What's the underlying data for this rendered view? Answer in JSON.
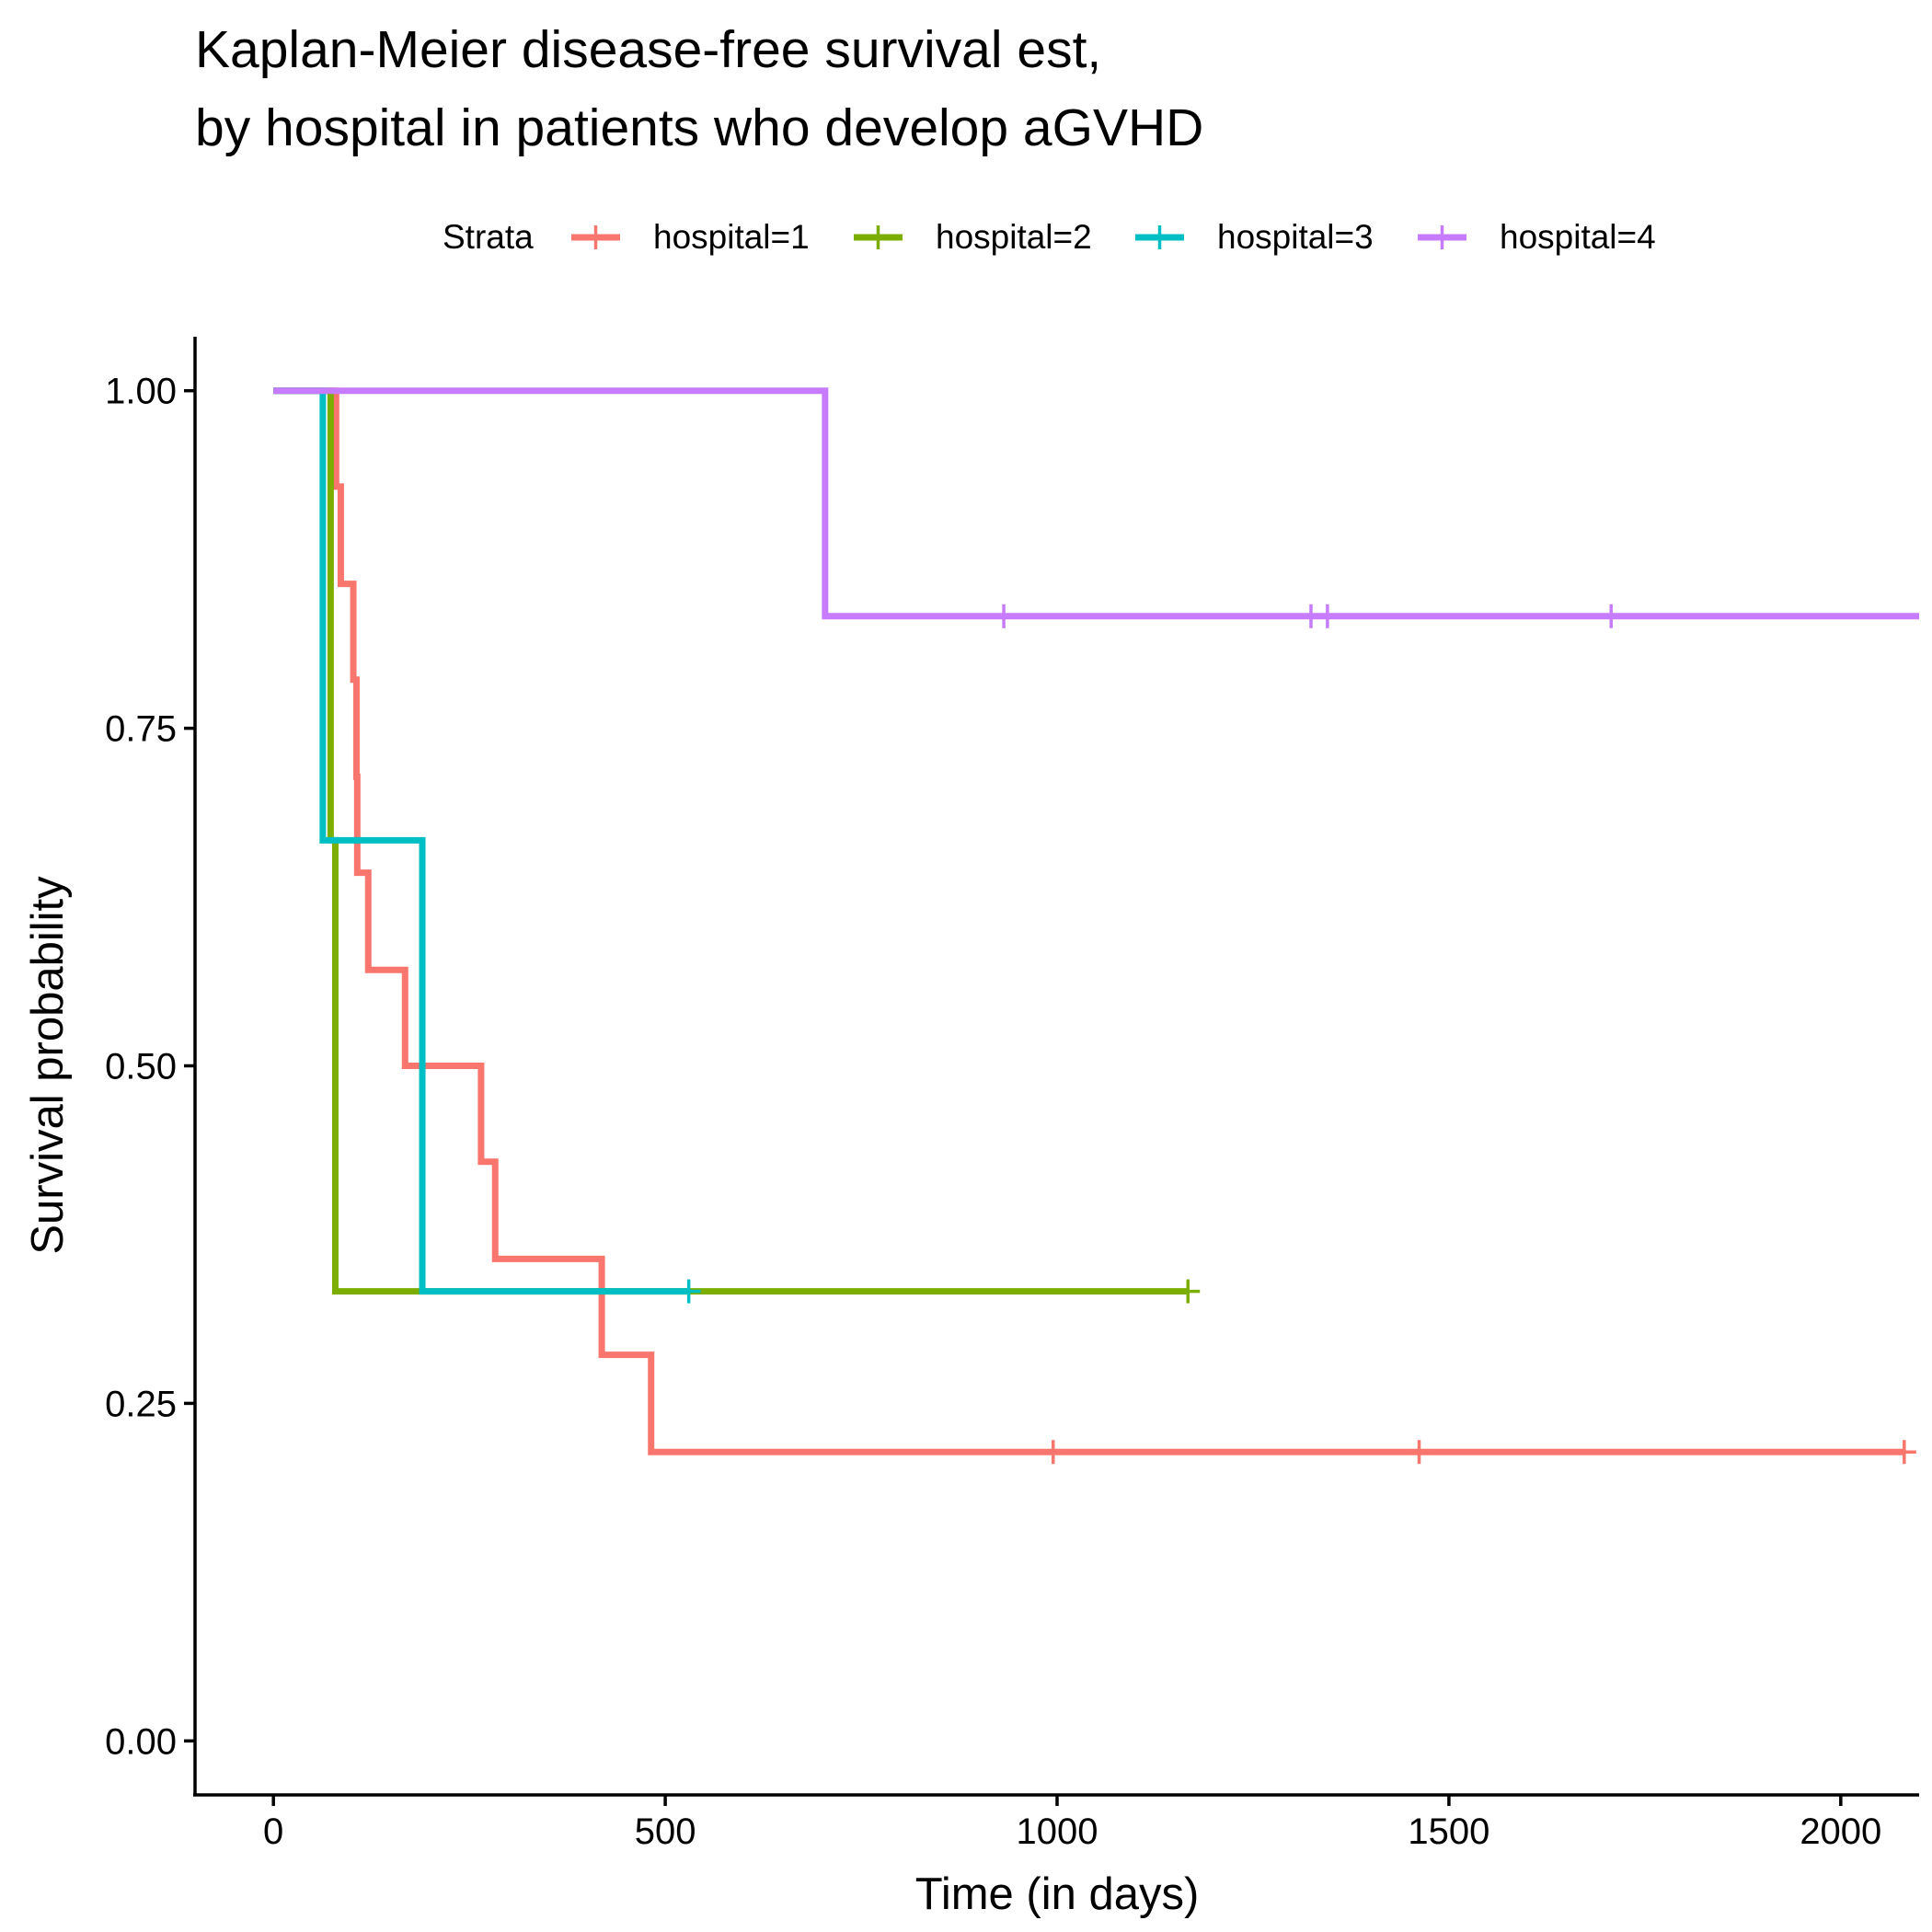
{
  "chart_data": {
    "type": "line",
    "subtype": "kaplan-meier step curve",
    "title_line1": "Kaplan-Meier disease-free survival est,",
    "title_line2": "by hospital in patients who develop aGVHD",
    "xlabel": "Time (in days)",
    "ylabel": "Survival probability",
    "xlim": [
      -100,
      2100
    ],
    "ylim": [
      -0.04,
      1.04
    ],
    "x_ticks": [
      0,
      500,
      1000,
      1500,
      2000
    ],
    "x_tick_labels": [
      "0",
      "500",
      "1000",
      "1500",
      "2000"
    ],
    "y_ticks": [
      0,
      0.25,
      0.5,
      0.75,
      1
    ],
    "y_tick_labels": [
      "0.00",
      "0.25",
      "0.50",
      "0.75",
      "1.00"
    ],
    "grid": false,
    "legend": {
      "title": "Strata",
      "position": "top"
    },
    "series": [
      {
        "name": "hospital=1",
        "color": "#F8766D",
        "steps": [
          [
            0,
            1.0
          ],
          [
            80,
            0.929
          ],
          [
            86,
            0.857
          ],
          [
            102,
            0.786
          ],
          [
            106,
            0.714
          ],
          [
            107,
            0.643
          ],
          [
            121,
            0.571
          ],
          [
            168,
            0.5
          ],
          [
            265,
            0.429
          ],
          [
            283,
            0.357
          ],
          [
            419,
            0.286
          ],
          [
            482,
            0.214
          ]
        ],
        "end_time": 2081,
        "censored": [
          [
            995,
            0.214
          ],
          [
            1462,
            0.214
          ],
          [
            2081,
            0.214
          ]
        ]
      },
      {
        "name": "hospital=2",
        "color": "#7CAE00",
        "steps": [
          [
            0,
            1.0
          ],
          [
            73,
            0.667
          ],
          [
            79,
            0.333
          ]
        ],
        "end_time": 1167,
        "censored": [
          [
            1167,
            0.333
          ]
        ]
      },
      {
        "name": "hospital=3",
        "color": "#00BFC4",
        "steps": [
          [
            0,
            1.0
          ],
          [
            63,
            0.667
          ],
          [
            190,
            0.333
          ]
        ],
        "end_time": 530,
        "censored": [
          [
            530,
            0.333
          ]
        ]
      },
      {
        "name": "hospital=4",
        "color": "#C77CFF",
        "steps": [
          [
            0,
            1.0
          ],
          [
            704,
            0.833
          ]
        ],
        "end_time": 2640,
        "censored": [
          [
            932,
            0.833
          ],
          [
            1324,
            0.833
          ],
          [
            1345,
            0.833
          ],
          [
            1707,
            0.833
          ]
        ]
      }
    ]
  }
}
